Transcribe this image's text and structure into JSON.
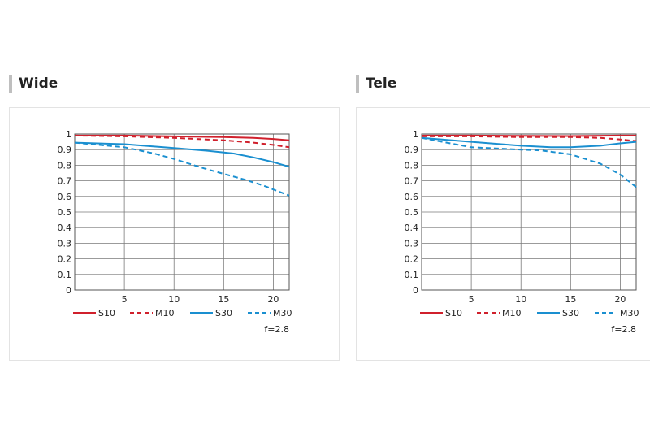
{
  "chart_data": [
    {
      "type": "line",
      "title": "Wide",
      "xlabel": "",
      "ylabel": "",
      "xlim": [
        0,
        21.6
      ],
      "ylim": [
        0,
        1
      ],
      "x_ticks": [
        5,
        10,
        15,
        20
      ],
      "y_ticks": [
        0,
        0.1,
        0.2,
        0.3,
        0.4,
        0.5,
        0.6,
        0.7,
        0.8,
        0.9,
        1
      ],
      "y_tick_labels": [
        "0",
        "0.1",
        "0.2",
        "0.3",
        "0.4",
        "0.5",
        "0.6",
        "0.7",
        "0.8",
        "0.9",
        "1"
      ],
      "grid": true,
      "legend_position": "bottom",
      "annotation": "f=2.8",
      "series": [
        {
          "name": "S10",
          "color": "#d0202c",
          "style": "solid",
          "x": [
            0,
            5,
            10,
            15,
            18,
            20,
            21.6
          ],
          "y": [
            0.99,
            0.99,
            0.985,
            0.98,
            0.975,
            0.968,
            0.96
          ]
        },
        {
          "name": "M10",
          "color": "#d0202c",
          "style": "dashed",
          "x": [
            0,
            5,
            10,
            15,
            18,
            20,
            21.6
          ],
          "y": [
            0.99,
            0.985,
            0.975,
            0.96,
            0.945,
            0.93,
            0.915
          ]
        },
        {
          "name": "S30",
          "color": "#1a8fd0",
          "style": "solid",
          "x": [
            0,
            5,
            10,
            13,
            16,
            18,
            20,
            21.6
          ],
          "y": [
            0.945,
            0.935,
            0.91,
            0.895,
            0.875,
            0.85,
            0.82,
            0.79
          ]
        },
        {
          "name": "M30",
          "color": "#1a8fd0",
          "style": "dashed",
          "x": [
            0,
            5,
            8,
            10,
            13,
            15,
            17,
            19,
            20,
            21.6
          ],
          "y": [
            0.945,
            0.915,
            0.875,
            0.84,
            0.78,
            0.745,
            0.71,
            0.67,
            0.645,
            0.605
          ]
        }
      ]
    },
    {
      "type": "line",
      "title": "Tele",
      "xlabel": "",
      "ylabel": "",
      "xlim": [
        0,
        21.6
      ],
      "ylim": [
        0,
        1
      ],
      "x_ticks": [
        5,
        10,
        15,
        20
      ],
      "y_ticks": [
        0,
        0.1,
        0.2,
        0.3,
        0.4,
        0.5,
        0.6,
        0.7,
        0.8,
        0.9,
        1
      ],
      "y_tick_labels": [
        "0",
        "0.1",
        "0.2",
        "0.3",
        "0.4",
        "0.5",
        "0.6",
        "0.7",
        "0.8",
        "0.9",
        "1"
      ],
      "grid": true,
      "legend_position": "bottom",
      "annotation": "f=2.8",
      "series": [
        {
          "name": "S10",
          "color": "#d0202c",
          "style": "solid",
          "x": [
            0,
            5,
            10,
            15,
            20,
            21.6
          ],
          "y": [
            0.99,
            0.99,
            0.988,
            0.987,
            0.99,
            0.99
          ]
        },
        {
          "name": "M10",
          "color": "#d0202c",
          "style": "dashed",
          "x": [
            0,
            5,
            10,
            15,
            18,
            20,
            21.6
          ],
          "y": [
            0.985,
            0.985,
            0.98,
            0.98,
            0.975,
            0.965,
            0.955
          ]
        },
        {
          "name": "S30",
          "color": "#1a8fd0",
          "style": "solid",
          "x": [
            0,
            5,
            10,
            13,
            15,
            18,
            20,
            21.6
          ],
          "y": [
            0.975,
            0.95,
            0.925,
            0.915,
            0.915,
            0.925,
            0.94,
            0.95
          ]
        },
        {
          "name": "M30",
          "color": "#1a8fd0",
          "style": "dashed",
          "x": [
            0,
            5,
            10,
            12,
            15,
            18,
            20,
            21.6
          ],
          "y": [
            0.975,
            0.915,
            0.9,
            0.895,
            0.87,
            0.81,
            0.74,
            0.66
          ]
        }
      ]
    }
  ]
}
